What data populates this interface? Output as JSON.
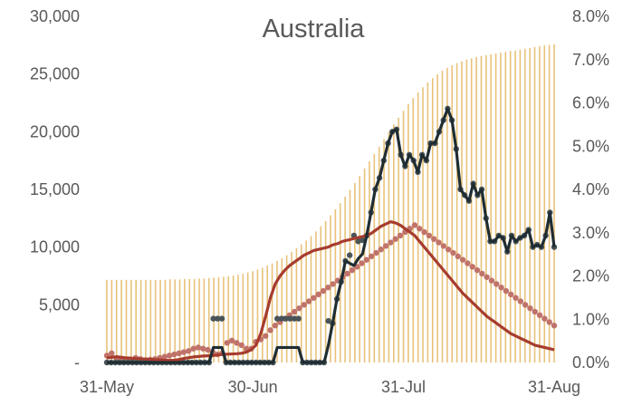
{
  "chart_data": {
    "type": "combo",
    "title": "Australia",
    "xlabel": "",
    "ylabel": "",
    "x_start": "2020-05-31",
    "x_end": "2020-08-31",
    "x_ticks": [
      "31-May",
      "30-Jun",
      "31-Jul",
      "31-Aug"
    ],
    "y_left": {
      "min": 0,
      "max": 30000,
      "ticks": [
        "-",
        "5,000",
        "10,000",
        "15,000",
        "20,000",
        "25,000",
        "30,000"
      ]
    },
    "y_right": {
      "min": 0,
      "max": 0.08,
      "ticks": [
        "0.0%",
        "1.0%",
        "2.0%",
        "3.0%",
        "4.0%",
        "5.0%",
        "6.0%",
        "7.0%",
        "8.0%"
      ]
    },
    "colors": {
      "bars": "#e8c27a",
      "dark_line": "#1f2d33",
      "dark_points": "#4a5458",
      "red_line": "#a63c2e",
      "red_points": "#c0736a",
      "axis_text": "#595959"
    },
    "series": [
      {
        "kind": "bar",
        "axis": "right",
        "values": [
          0.0191,
          0.0191,
          0.0191,
          0.0191,
          0.0191,
          0.0191,
          0.0191,
          0.0191,
          0.0191,
          0.0191,
          0.0191,
          0.0191,
          0.0191,
          0.0192,
          0.0192,
          0.0192,
          0.0193,
          0.0193,
          0.0193,
          0.0194,
          0.0194,
          0.0195,
          0.0196,
          0.0197,
          0.0198,
          0.0199,
          0.0201,
          0.0203,
          0.0205,
          0.0208,
          0.0211,
          0.0215,
          0.0219,
          0.0224,
          0.0229,
          0.0235,
          0.0241,
          0.0248,
          0.0256,
          0.0264,
          0.0273,
          0.0282,
          0.0292,
          0.0303,
          0.0315,
          0.0327,
          0.034,
          0.0354,
          0.0368,
          0.0383,
          0.0399,
          0.0415,
          0.0431,
          0.0448,
          0.0465,
          0.0482,
          0.0499,
          0.0516,
          0.0533,
          0.055,
          0.0566,
          0.0582,
          0.0597,
          0.0611,
          0.0624,
          0.0636,
          0.0647,
          0.0657,
          0.0666,
          0.0674,
          0.0681,
          0.0687,
          0.0692,
          0.0696,
          0.07,
          0.0703,
          0.0706,
          0.0708,
          0.071,
          0.0712,
          0.0714,
          0.0716,
          0.0718,
          0.072,
          0.0721,
          0.0723,
          0.0725,
          0.0727,
          0.0729,
          0.0731,
          0.0733,
          0.0734,
          0.0735
        ]
      },
      {
        "kind": "line",
        "axis": "left",
        "color": "dark_line",
        "values": [
          0,
          0,
          0,
          0,
          0,
          0,
          0,
          0,
          0,
          0,
          0,
          0,
          0,
          0,
          0,
          0,
          0,
          0,
          0,
          0,
          0,
          0,
          0,
          0,
          0,
          1300,
          1300,
          1300,
          0,
          0,
          0,
          0,
          0,
          0,
          0,
          0,
          0,
          0,
          0,
          0,
          1300,
          1300,
          1300,
          1300,
          1300,
          1300,
          0,
          0,
          0,
          0,
          0,
          0,
          1500,
          3400,
          5500,
          7000,
          8800,
          8600,
          8400,
          9000,
          9400,
          11000,
          13000,
          15000,
          16000,
          17500,
          19000,
          20000,
          20200,
          18000,
          17000,
          18000,
          17500,
          16500,
          18000,
          17500,
          19000,
          19000,
          20000,
          21000,
          22000,
          21000,
          18500,
          15000,
          14500,
          14000,
          15500,
          14500,
          15000,
          12500,
          10500,
          10500,
          11000,
          10800,
          9600,
          11000,
          10500,
          10800,
          11000,
          11500,
          10000,
          10200,
          10000,
          11000,
          13000,
          10000
        ]
      },
      {
        "kind": "scatter",
        "axis": "left",
        "color": "dark_points",
        "values": [
          0,
          0,
          0,
          0,
          0,
          0,
          0,
          0,
          0,
          0,
          0,
          0,
          0,
          0,
          0,
          0,
          0,
          0,
          0,
          0,
          0,
          0,
          0,
          0,
          0,
          3800,
          3800,
          3800,
          0,
          0,
          0,
          0,
          0,
          0,
          0,
          0,
          0,
          0,
          0,
          0,
          3800,
          3800,
          3800,
          3800,
          3800,
          3800,
          0,
          0,
          0,
          0,
          0,
          0,
          3600,
          3400,
          5500,
          7000,
          8800,
          9300,
          11000,
          10500,
          10600,
          11000,
          13000,
          15000,
          16000,
          17500,
          19000,
          20000,
          20200,
          18000,
          17000,
          18000,
          17500,
          16500,
          18000,
          17500,
          19000,
          19000,
          20000,
          21000,
          22000,
          21000,
          18500,
          15000,
          14500,
          14000,
          15500,
          14500,
          15000,
          12500,
          10500,
          10500,
          11000,
          10800,
          9600,
          11000,
          10500,
          10800,
          11000,
          11500,
          10000,
          10200,
          10000,
          11000,
          13000,
          10000
        ]
      },
      {
        "kind": "line",
        "axis": "left",
        "color": "red_line",
        "values": [
          400,
          450,
          500,
          450,
          400,
          380,
          350,
          320,
          300,
          280,
          250,
          230,
          200,
          180,
          200,
          260,
          350,
          420,
          480,
          520,
          560,
          580,
          600,
          650,
          700,
          720,
          740,
          760,
          800,
          900,
          1100,
          1500,
          2500,
          4000,
          5600,
          6800,
          7500,
          8000,
          8400,
          8700,
          9000,
          9300,
          9500,
          9700,
          9800,
          9900,
          10000,
          10200,
          10300,
          10500,
          10600,
          10700,
          10800,
          10900,
          11000,
          11200,
          11500,
          11800,
          12000,
          12200,
          12100,
          11900,
          11600,
          11300,
          11000,
          10500,
          10000,
          9500,
          9000,
          8500,
          8000,
          7500,
          7000,
          6500,
          6000,
          5600,
          5200,
          4800,
          4400,
          4000,
          3700,
          3400,
          3100,
          2800,
          2500,
          2300,
          2100,
          1900,
          1700,
          1500,
          1400,
          1300,
          1200,
          1100
        ]
      },
      {
        "kind": "scatter",
        "axis": "left",
        "color": "red_points",
        "values": [
          600,
          800,
          350,
          250,
          180,
          150,
          400,
          300,
          200,
          250,
          300,
          400,
          500,
          600,
          700,
          800,
          900,
          1000,
          1200,
          1300,
          1200,
          1100,
          900,
          700,
          800,
          1700,
          1900,
          1700,
          1500,
          1200,
          1200,
          1800,
          2000,
          2300,
          2800,
          3200,
          3500,
          3800,
          4100,
          4400,
          4700,
          5000,
          5300,
          5600,
          5900,
          6200,
          6500,
          6800,
          7100,
          7400,
          7700,
          8000,
          8300,
          8600,
          8900,
          9200,
          9500,
          9800,
          10100,
          10400,
          10700,
          11000,
          11300,
          11600,
          11900,
          11600,
          11300,
          11000,
          10700,
          10400,
          10100,
          9800,
          9500,
          9200,
          8900,
          8600,
          8300,
          8000,
          7700,
          7400,
          7100,
          6800,
          6500,
          6200,
          5900,
          5600,
          5300,
          5000,
          4700,
          4400,
          4100,
          3800,
          3500,
          3200
        ]
      }
    ]
  }
}
